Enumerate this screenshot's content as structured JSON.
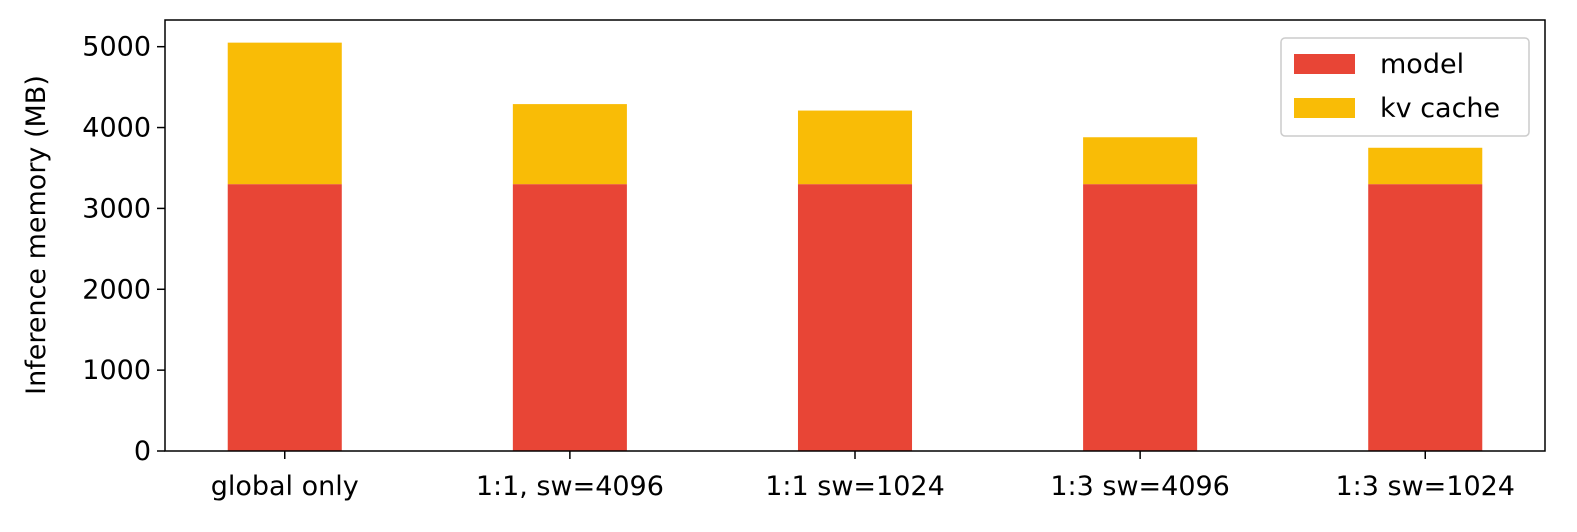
{
  "chart_data": {
    "type": "stacked-bar",
    "y_label": "Inference memory (MB)",
    "categories": [
      "global only",
      "1:1, sw=4096",
      "1:1 sw=1024",
      "1:3 sw=4096",
      "1:3 sw=1024"
    ],
    "series": [
      {
        "name": "model",
        "color": "#e84536",
        "values": [
          3300,
          3300,
          3300,
          3300,
          3300
        ]
      },
      {
        "name": "kv cache",
        "color": "#f9bc06",
        "values": [
          1750,
          990,
          910,
          580,
          450
        ]
      }
    ],
    "ylim": [
      0,
      5330
    ],
    "yticks": [
      0,
      1000,
      2000,
      3000,
      4000,
      5000
    ],
    "legend": "upper right"
  }
}
